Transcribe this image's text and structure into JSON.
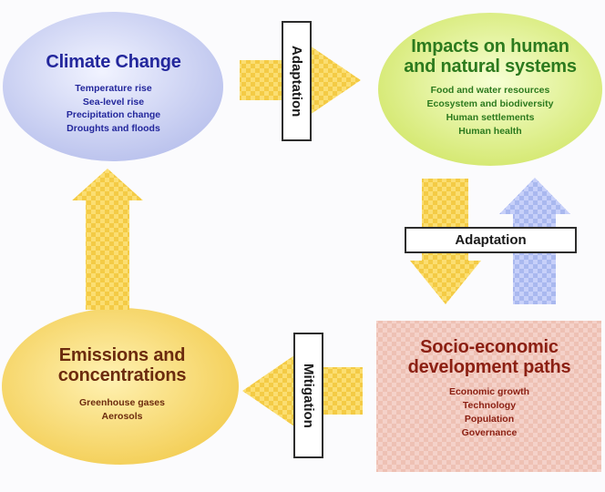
{
  "nodes": {
    "climate_change": {
      "title": "Climate Change",
      "items": [
        "Temperature rise",
        "Sea-level rise",
        "Precipitation change",
        "Droughts and floods"
      ]
    },
    "impacts": {
      "title_line1": "Impacts on human",
      "title_line2": "and natural systems",
      "items": [
        "Food and water resources",
        "Ecosystem and biodiversity",
        "Human settlements",
        "Human health"
      ]
    },
    "socio_economic": {
      "title_line1": "Socio-economic",
      "title_line2": "development paths",
      "items": [
        "Economic growth",
        "Technology",
        "Population",
        "Governance"
      ]
    },
    "emissions": {
      "title_line1": "Emissions and",
      "title_line2": "concentrations",
      "items": [
        "Greenhouse gases",
        "Aerosols"
      ]
    }
  },
  "labels": {
    "top_adaptation": "Adaptation",
    "right_adaptation": "Adaptation",
    "bottom_mitigation": "Mitigation"
  },
  "colors": {
    "climate_fill": "#c8cdf2",
    "climate_text": "#23279c",
    "impacts_fill": "#d8ee6d",
    "impacts_text": "#2c7a1e",
    "socio_fill": "#efc1b5",
    "socio_text": "#8b1f12",
    "emissions_fill": "#f7d45c",
    "emissions_text": "#6c2b0e",
    "arrow_yellow": "#f4cc42",
    "arrow_blue": "#a8b6ec"
  }
}
